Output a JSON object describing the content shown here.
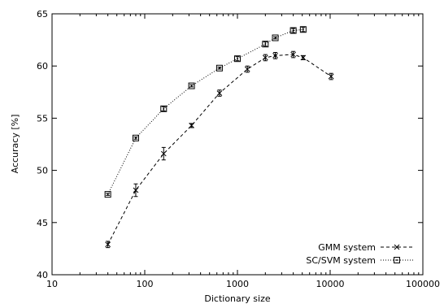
{
  "chart_data": {
    "type": "line",
    "title": "",
    "xlabel": "Dictionary size",
    "ylabel": "Accuracy [%]",
    "xscale": "log",
    "xlim": [
      10,
      100000
    ],
    "ylim": [
      40,
      65
    ],
    "x_ticks": [
      10,
      100,
      1000,
      10000,
      100000
    ],
    "x_tick_labels": [
      "10",
      "100",
      "1000",
      "10000",
      "100000"
    ],
    "y_ticks": [
      40,
      45,
      50,
      55,
      60,
      65
    ],
    "y_tick_labels": [
      "40",
      "45",
      "50",
      "55",
      "60",
      "65"
    ],
    "grid": false,
    "legend_position": "bottom-right",
    "series": [
      {
        "name": "GMM system",
        "marker": "x",
        "line_style": "dashed",
        "points": [
          {
            "x": 40,
            "y": 42.9,
            "err": 0.3
          },
          {
            "x": 80,
            "y": 48.1,
            "err": 0.6
          },
          {
            "x": 160,
            "y": 51.6,
            "err": 0.6
          },
          {
            "x": 320,
            "y": 54.3,
            "err": 0.2
          },
          {
            "x": 640,
            "y": 57.4,
            "err": 0.3
          },
          {
            "x": 1280,
            "y": 59.7,
            "err": 0.3
          },
          {
            "x": 2000,
            "y": 60.8,
            "err": 0.3
          },
          {
            "x": 2560,
            "y": 61.0,
            "err": 0.3
          },
          {
            "x": 4000,
            "y": 61.1,
            "err": 0.3
          },
          {
            "x": 5120,
            "y": 60.8,
            "err": 0.2
          },
          {
            "x": 10240,
            "y": 59.0,
            "err": 0.3
          }
        ]
      },
      {
        "name": "SC/SVM system",
        "marker": "square-dot",
        "line_style": "dotted",
        "points": [
          {
            "x": 40,
            "y": 47.7,
            "err": 0.1
          },
          {
            "x": 80,
            "y": 53.1,
            "err": 0.1
          },
          {
            "x": 160,
            "y": 55.9,
            "err": 0.2
          },
          {
            "x": 320,
            "y": 58.1,
            "err": 0.1
          },
          {
            "x": 640,
            "y": 59.8,
            "err": 0.1
          },
          {
            "x": 1000,
            "y": 60.7,
            "err": 0.2
          },
          {
            "x": 2000,
            "y": 62.1,
            "err": 0.2
          },
          {
            "x": 2560,
            "y": 62.7,
            "err": 0.1
          },
          {
            "x": 4000,
            "y": 63.4,
            "err": 0.2
          },
          {
            "x": 5120,
            "y": 63.5,
            "err": 0.2
          }
        ]
      }
    ]
  }
}
